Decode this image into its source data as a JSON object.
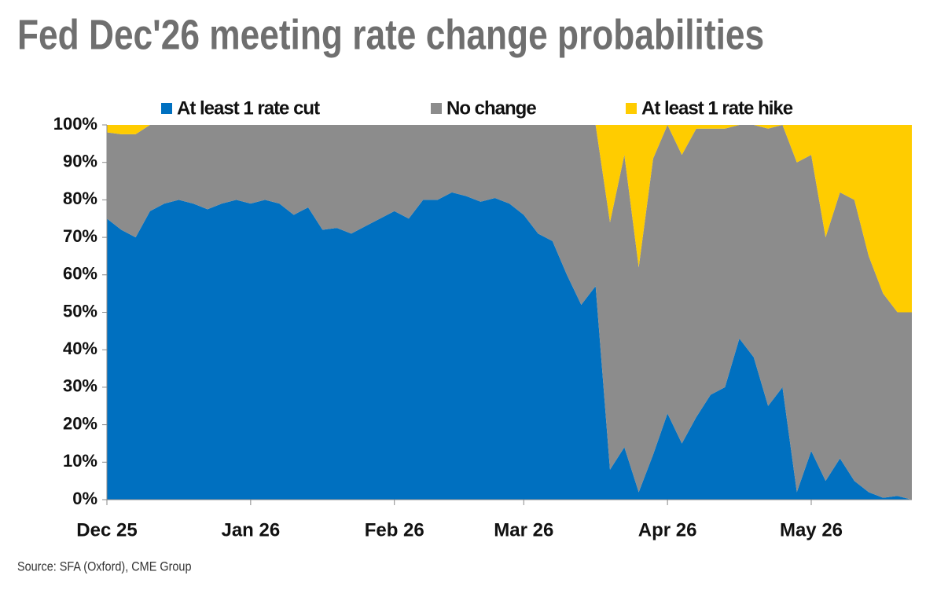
{
  "chart_data": {
    "type": "stacked_area",
    "title": "Fed Dec'26 meeting rate change probabilities",
    "source": "Source: SFA (Oxford), CME Group",
    "categories": [
      "Dec 25",
      null,
      null,
      null,
      null,
      null,
      null,
      null,
      null,
      null,
      "Jan 26",
      null,
      null,
      null,
      null,
      null,
      null,
      null,
      null,
      null,
      "Feb 26",
      null,
      null,
      null,
      null,
      null,
      null,
      null,
      null,
      "Mar 26",
      null,
      null,
      null,
      null,
      null,
      null,
      null,
      null,
      null,
      "Apr 26",
      null,
      null,
      null,
      null,
      null,
      null,
      null,
      null,
      null,
      "May 26",
      null,
      null,
      null,
      null,
      null,
      null,
      null
    ],
    "series": [
      {
        "name": "At least 1 rate cut",
        "color": "#0070c0",
        "values": [
          75,
          72,
          70,
          77,
          79,
          80,
          79,
          77.5,
          79,
          80,
          79,
          80,
          79,
          76,
          78,
          72,
          72.5,
          71,
          73,
          75,
          77,
          75,
          80,
          80,
          82,
          81,
          79.5,
          80.5,
          79,
          76,
          71,
          69,
          60,
          52,
          57,
          8,
          14,
          2,
          12,
          23,
          15,
          22,
          28,
          30,
          43,
          38,
          25,
          30,
          2,
          13,
          5,
          11,
          5,
          2,
          0.5,
          1,
          0
        ]
      },
      {
        "name": "No change",
        "color": "#8c8c8c",
        "values": [
          23,
          25.5,
          27.5,
          23,
          21,
          20,
          21,
          22.5,
          21,
          20,
          21,
          20,
          21,
          24,
          22,
          28,
          27.5,
          29,
          27,
          25,
          23,
          25,
          20,
          20,
          18,
          19,
          20.5,
          19.5,
          21,
          24,
          29,
          31,
          40,
          48,
          43,
          66,
          78,
          60,
          79,
          77,
          77,
          77,
          71,
          69,
          57,
          62,
          74,
          70,
          88,
          79,
          65,
          71,
          75,
          63,
          54.5,
          49,
          50
        ]
      },
      {
        "name": "At least 1 rate hike",
        "color": "#ffcc00",
        "values": [
          2,
          2.5,
          2.5,
          0,
          0,
          0,
          0,
          0,
          0,
          0,
          0,
          0,
          0,
          0,
          0,
          0,
          0,
          0,
          0,
          0,
          0,
          0,
          0,
          0,
          0,
          0,
          0,
          0,
          0,
          0,
          0,
          0,
          0,
          0,
          0,
          26,
          8,
          38,
          9,
          0,
          8,
          1,
          1,
          1,
          0,
          0,
          1,
          0,
          10,
          8,
          30,
          18,
          20,
          35,
          45,
          50,
          50
        ]
      }
    ],
    "ylim": [
      0,
      100
    ],
    "yticks": [
      {
        "value": 0,
        "label": "0%"
      },
      {
        "value": 10,
        "label": "10%"
      },
      {
        "value": 20,
        "label": "20%"
      },
      {
        "value": 30,
        "label": "30%"
      },
      {
        "value": 40,
        "label": "40%"
      },
      {
        "value": 50,
        "label": "50%"
      },
      {
        "value": 60,
        "label": "60%"
      },
      {
        "value": 70,
        "label": "70%"
      },
      {
        "value": 80,
        "label": "80%"
      },
      {
        "value": 90,
        "label": "90%"
      },
      {
        "value": 100,
        "label": "100%"
      }
    ],
    "legend": "top"
  }
}
